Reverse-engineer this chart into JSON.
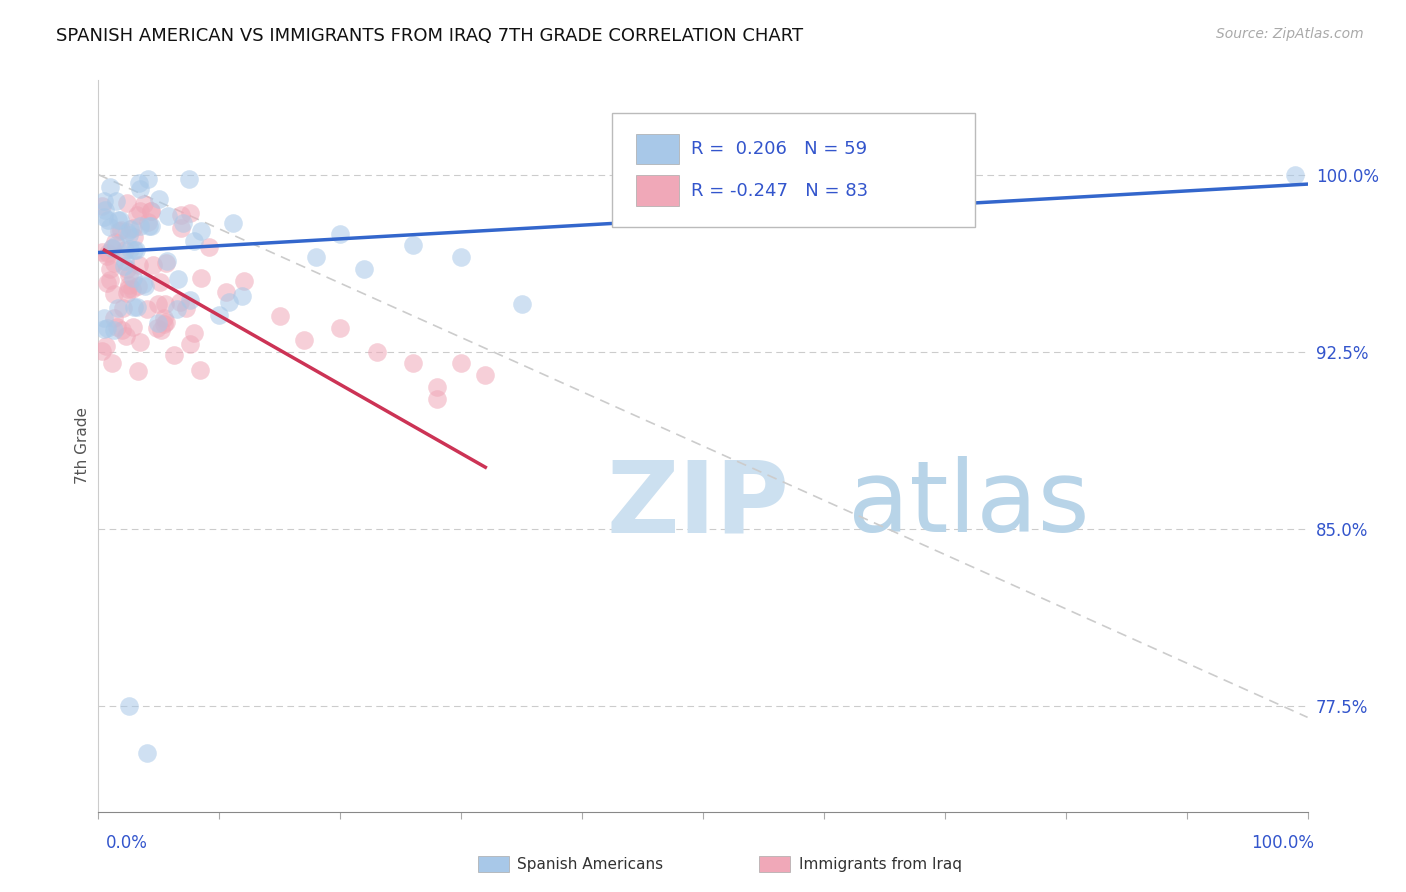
{
  "title": "SPANISH AMERICAN VS IMMIGRANTS FROM IRAQ 7TH GRADE CORRELATION CHART",
  "source_text": "Source: ZipAtlas.com",
  "ylabel": "7th Grade",
  "ytick_labels": [
    "77.5%",
    "85.0%",
    "92.5%",
    "100.0%"
  ],
  "ytick_values": [
    0.775,
    0.85,
    0.925,
    1.0
  ],
  "xmin": 0.0,
  "xmax": 1.0,
  "ymin": 0.73,
  "ymax": 1.04,
  "r_blue": 0.206,
  "n_blue": 59,
  "r_pink": -0.247,
  "n_pink": 83,
  "blue_color": "#a8c8e8",
  "pink_color": "#f0a8b8",
  "blue_line_color": "#3366cc",
  "pink_line_color": "#cc3355",
  "grid_line_color": "#cccccc",
  "diag_line_color": "#cccccc",
  "legend_label_blue": "Spanish Americans",
  "legend_label_pink": "Immigrants from Iraq",
  "text_color": "#3355cc",
  "watermark_zip": "ZIP",
  "watermark_atlas": "atlas",
  "watermark_color": "#cce0f0",
  "background_color": "#ffffff",
  "title_fontsize": 13,
  "source_fontsize": 10,
  "blue_trend_x": [
    0.0,
    1.0
  ],
  "blue_trend_y": [
    0.967,
    0.996
  ],
  "pink_trend_x": [
    0.005,
    0.32
  ],
  "pink_trend_y": [
    0.968,
    0.876
  ]
}
